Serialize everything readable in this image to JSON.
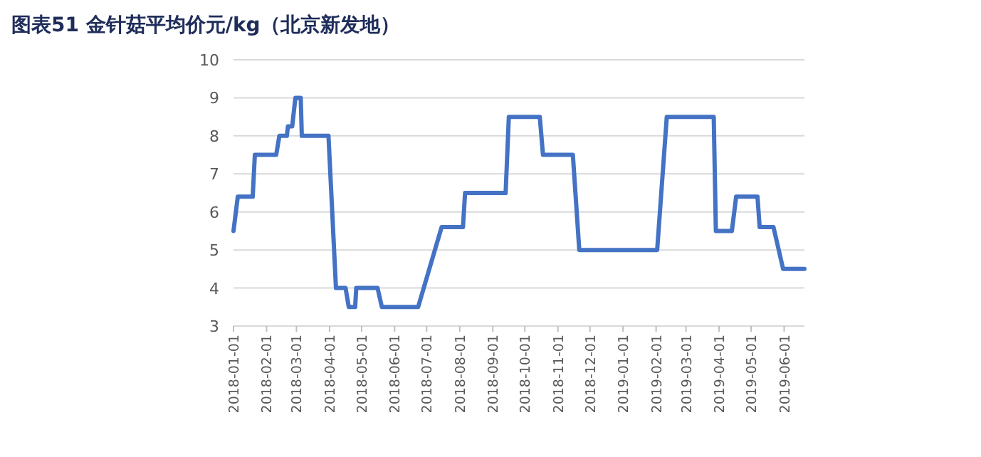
{
  "chart_data": {
    "type": "line",
    "title": "图表51 金针菇平均价元/kg（北京新发地）",
    "x": [
      "2018-01-01",
      "2018-01-05",
      "2018-01-19",
      "2018-01-21",
      "2018-02-10",
      "2018-02-13",
      "2018-02-20",
      "2018-02-21",
      "2018-02-25",
      "2018-02-28",
      "2018-03-05",
      "2018-03-06",
      "2018-03-31",
      "2018-04-07",
      "2018-04-16",
      "2018-04-19",
      "2018-04-25",
      "2018-04-26",
      "2018-05-16",
      "2018-05-20",
      "2018-06-23",
      "2018-07-15",
      "2018-08-04",
      "2018-08-06",
      "2018-09-13",
      "2018-09-16",
      "2018-10-15",
      "2018-10-18",
      "2018-11-15",
      "2018-11-21",
      "2019-02-02",
      "2019-02-11",
      "2019-03-27",
      "2019-03-29",
      "2019-04-13",
      "2019-04-17",
      "2019-05-07",
      "2019-05-09",
      "2019-05-22",
      "2019-05-31",
      "2019-06-20"
    ],
    "series": [
      {
        "color": "#4472c4",
        "values": [
          5.5,
          6.4,
          6.4,
          7.5,
          7.5,
          8.0,
          8.0,
          8.25,
          8.25,
          9.0,
          9.0,
          8.0,
          8.0,
          4.0,
          4.0,
          3.5,
          3.5,
          4.0,
          4.0,
          3.5,
          3.5,
          5.6,
          5.6,
          6.5,
          6.5,
          8.5,
          8.5,
          7.5,
          7.5,
          5.0,
          5.0,
          8.5,
          8.5,
          5.5,
          5.5,
          6.4,
          6.4,
          5.6,
          5.6,
          4.5,
          4.5
        ]
      }
    ],
    "xlim": [
      "2018-01-01",
      "2019-06-20"
    ],
    "xticks": [
      "2018-01-01",
      "2018-02-01",
      "2018-03-01",
      "2018-04-01",
      "2018-05-01",
      "2018-06-01",
      "2018-07-01",
      "2018-08-01",
      "2018-09-01",
      "2018-10-01",
      "2018-11-01",
      "2018-12-01",
      "2019-01-01",
      "2019-02-01",
      "2019-03-01",
      "2019-04-01",
      "2019-05-01",
      "2019-06-01"
    ],
    "ylim": [
      3,
      10
    ],
    "yticks": [
      3,
      4,
      5,
      6,
      7,
      8,
      9,
      10
    ],
    "grid": "y",
    "marker": "none",
    "line_style": "solid"
  }
}
